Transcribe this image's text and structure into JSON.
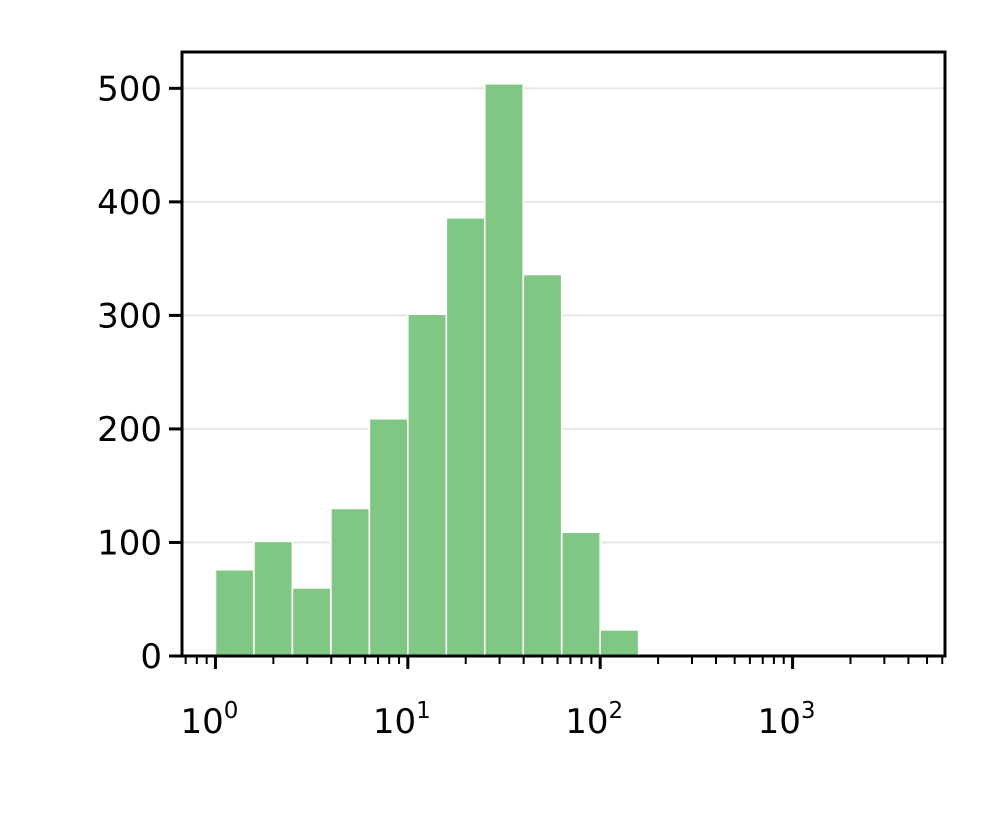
{
  "chart_data": {
    "type": "bar",
    "title": "",
    "xlabel": "",
    "ylabel": "",
    "x_scale": "log",
    "xlim": [
      0.67,
      6200
    ],
    "ylim": [
      0,
      532
    ],
    "grid": "horizontal",
    "bar_color": "#81c784",
    "bins": [
      {
        "left": 1,
        "right": 1.585,
        "value": 76
      },
      {
        "left": 1.585,
        "right": 2.512,
        "value": 101
      },
      {
        "left": 2.512,
        "right": 3.981,
        "value": 60
      },
      {
        "left": 3.981,
        "right": 6.31,
        "value": 130
      },
      {
        "left": 6.31,
        "right": 10,
        "value": 209
      },
      {
        "left": 10,
        "right": 15.85,
        "value": 301
      },
      {
        "left": 15.85,
        "right": 25.12,
        "value": 386
      },
      {
        "left": 25.12,
        "right": 39.81,
        "value": 504
      },
      {
        "left": 39.81,
        "right": 63.1,
        "value": 336
      },
      {
        "left": 63.1,
        "right": 100,
        "value": 109
      },
      {
        "left": 100,
        "right": 158.5,
        "value": 23
      },
      {
        "left": 158.5,
        "right": 251.2,
        "value": 1
      }
    ],
    "y_ticks": [
      {
        "value": 0,
        "label": "0"
      },
      {
        "value": 100,
        "label": "100"
      },
      {
        "value": 200,
        "label": "200"
      },
      {
        "value": 300,
        "label": "300"
      },
      {
        "value": 400,
        "label": "400"
      },
      {
        "value": 500,
        "label": "500"
      }
    ],
    "x_ticks": [
      {
        "value": 1,
        "base": "10",
        "exp": "0"
      },
      {
        "value": 10,
        "base": "10",
        "exp": "1"
      },
      {
        "value": 100,
        "base": "10",
        "exp": "2"
      },
      {
        "value": 1000,
        "base": "10",
        "exp": "3"
      }
    ]
  }
}
